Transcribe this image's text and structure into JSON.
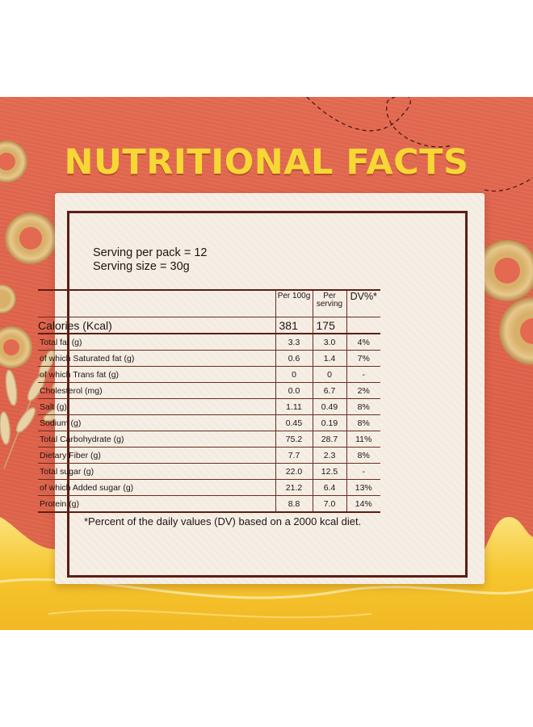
{
  "title": "NUTRITIONAL FACTS",
  "serving": {
    "per_pack": "Serving per pack = 12",
    "size": "Serving size = 30g"
  },
  "table": {
    "headers": {
      "per100": "Per 100g",
      "per_serving_line1": "Per",
      "per_serving_line2": "serving",
      "dv": "DV%*"
    },
    "calories": {
      "label": "Calories (Kcal)",
      "per100": "381",
      "per_serving": "175"
    },
    "rows": [
      {
        "name": "Total fat (g)",
        "per100": "3.3",
        "per_serving": "3.0",
        "dv": "4%"
      },
      {
        "name": " of which Saturated fat (g)",
        "per100": "0.6",
        "per_serving": "1.4",
        "dv": "7%"
      },
      {
        "name": " of which Trans fat (g)",
        "per100": "0",
        "per_serving": "0",
        "dv": "-"
      },
      {
        "name": "Cholesterol (mg)",
        "per100": "0.0",
        "per_serving": "6.7",
        "dv": "2%"
      },
      {
        "name": "Salt (g)",
        "per100": "1.11",
        "per_serving": "0.49",
        "dv": "8%"
      },
      {
        "name": "Sodium (g)",
        "per100": "0.45",
        "per_serving": "0.19",
        "dv": "8%"
      },
      {
        "name": "Total Carbohydrate (g)",
        "per100": "75.2",
        "per_serving": "28.7",
        "dv": "11%"
      },
      {
        "name": "Dietary Fiber (g)",
        "per100": "7.7",
        "per_serving": "2.3",
        "dv": "8%"
      },
      {
        "name": "Total sugar (g)",
        "per100": "22.0",
        "per_serving": "12.5",
        "dv": "-"
      },
      {
        "name": " of which Added sugar (g)",
        "per100": "21.2",
        "per_serving": "6.4",
        "dv": "13%"
      },
      {
        "name": "Protein (g)",
        "per100": "8.8",
        "per_serving": "7.0",
        "dv": "14%"
      }
    ]
  },
  "footnote": "*Percent of the daily values (DV) based on a 2000 kcal diet.",
  "colors": {
    "background": "#e36a51",
    "title": "#f7d735",
    "card": "#f6efe6",
    "border": "#5d1d14",
    "honey": "#f5c233"
  },
  "decorations": [
    "cereal-ring-icon",
    "oat-stalk-icon",
    "honey-wave",
    "dashed-path"
  ]
}
